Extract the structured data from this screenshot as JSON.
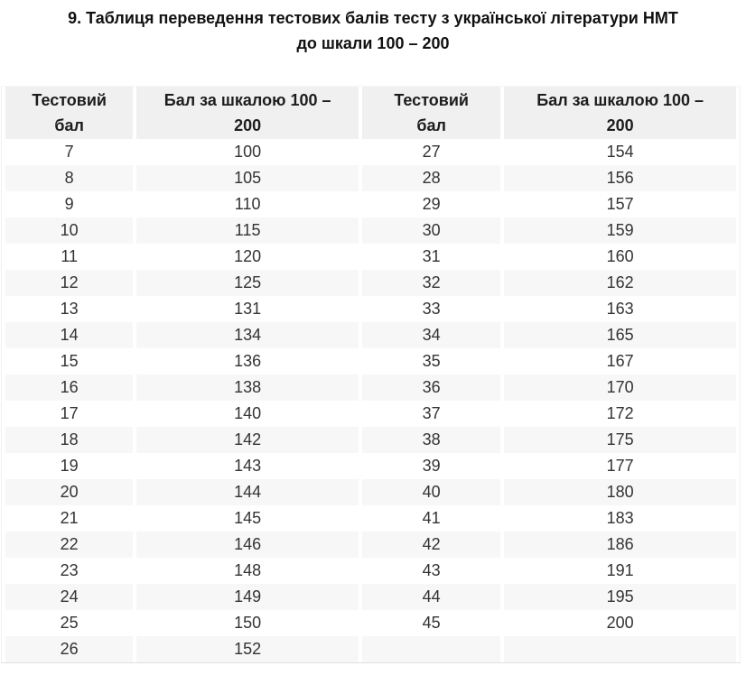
{
  "page": {
    "title_line1": "9. Таблиця переведення тестових балів тесту з української літератури НМТ",
    "title_line2": "до шкали 100 – 200"
  },
  "table": {
    "headers": [
      "Тестовий\nбал",
      "Бал за шкалою 100 –\n200",
      "Тестовий\nбал",
      "Бал за шкалою 100 –\n200"
    ],
    "rows": [
      [
        "7",
        "100",
        "27",
        "154"
      ],
      [
        "8",
        "105",
        "28",
        "156"
      ],
      [
        "9",
        "110",
        "29",
        "157"
      ],
      [
        "10",
        "115",
        "30",
        "159"
      ],
      [
        "11",
        "120",
        "31",
        "160"
      ],
      [
        "12",
        "125",
        "32",
        "162"
      ],
      [
        "13",
        "131",
        "33",
        "163"
      ],
      [
        "14",
        "134",
        "34",
        "165"
      ],
      [
        "15",
        "136",
        "35",
        "167"
      ],
      [
        "16",
        "138",
        "36",
        "170"
      ],
      [
        "17",
        "140",
        "37",
        "172"
      ],
      [
        "18",
        "142",
        "38",
        "175"
      ],
      [
        "19",
        "143",
        "39",
        "177"
      ],
      [
        "20",
        "144",
        "40",
        "180"
      ],
      [
        "21",
        "145",
        "41",
        "183"
      ],
      [
        "22",
        "146",
        "42",
        "186"
      ],
      [
        "23",
        "148",
        "43",
        "191"
      ],
      [
        "24",
        "149",
        "44",
        "195"
      ],
      [
        "25",
        "150",
        "45",
        "200"
      ],
      [
        "26",
        "152",
        "",
        ""
      ]
    ],
    "colors": {
      "header_bg": "#f0f0f1",
      "stripe_bg": "#f7f7f8",
      "border_bottom": "#dedede",
      "text": "#333333"
    }
  }
}
